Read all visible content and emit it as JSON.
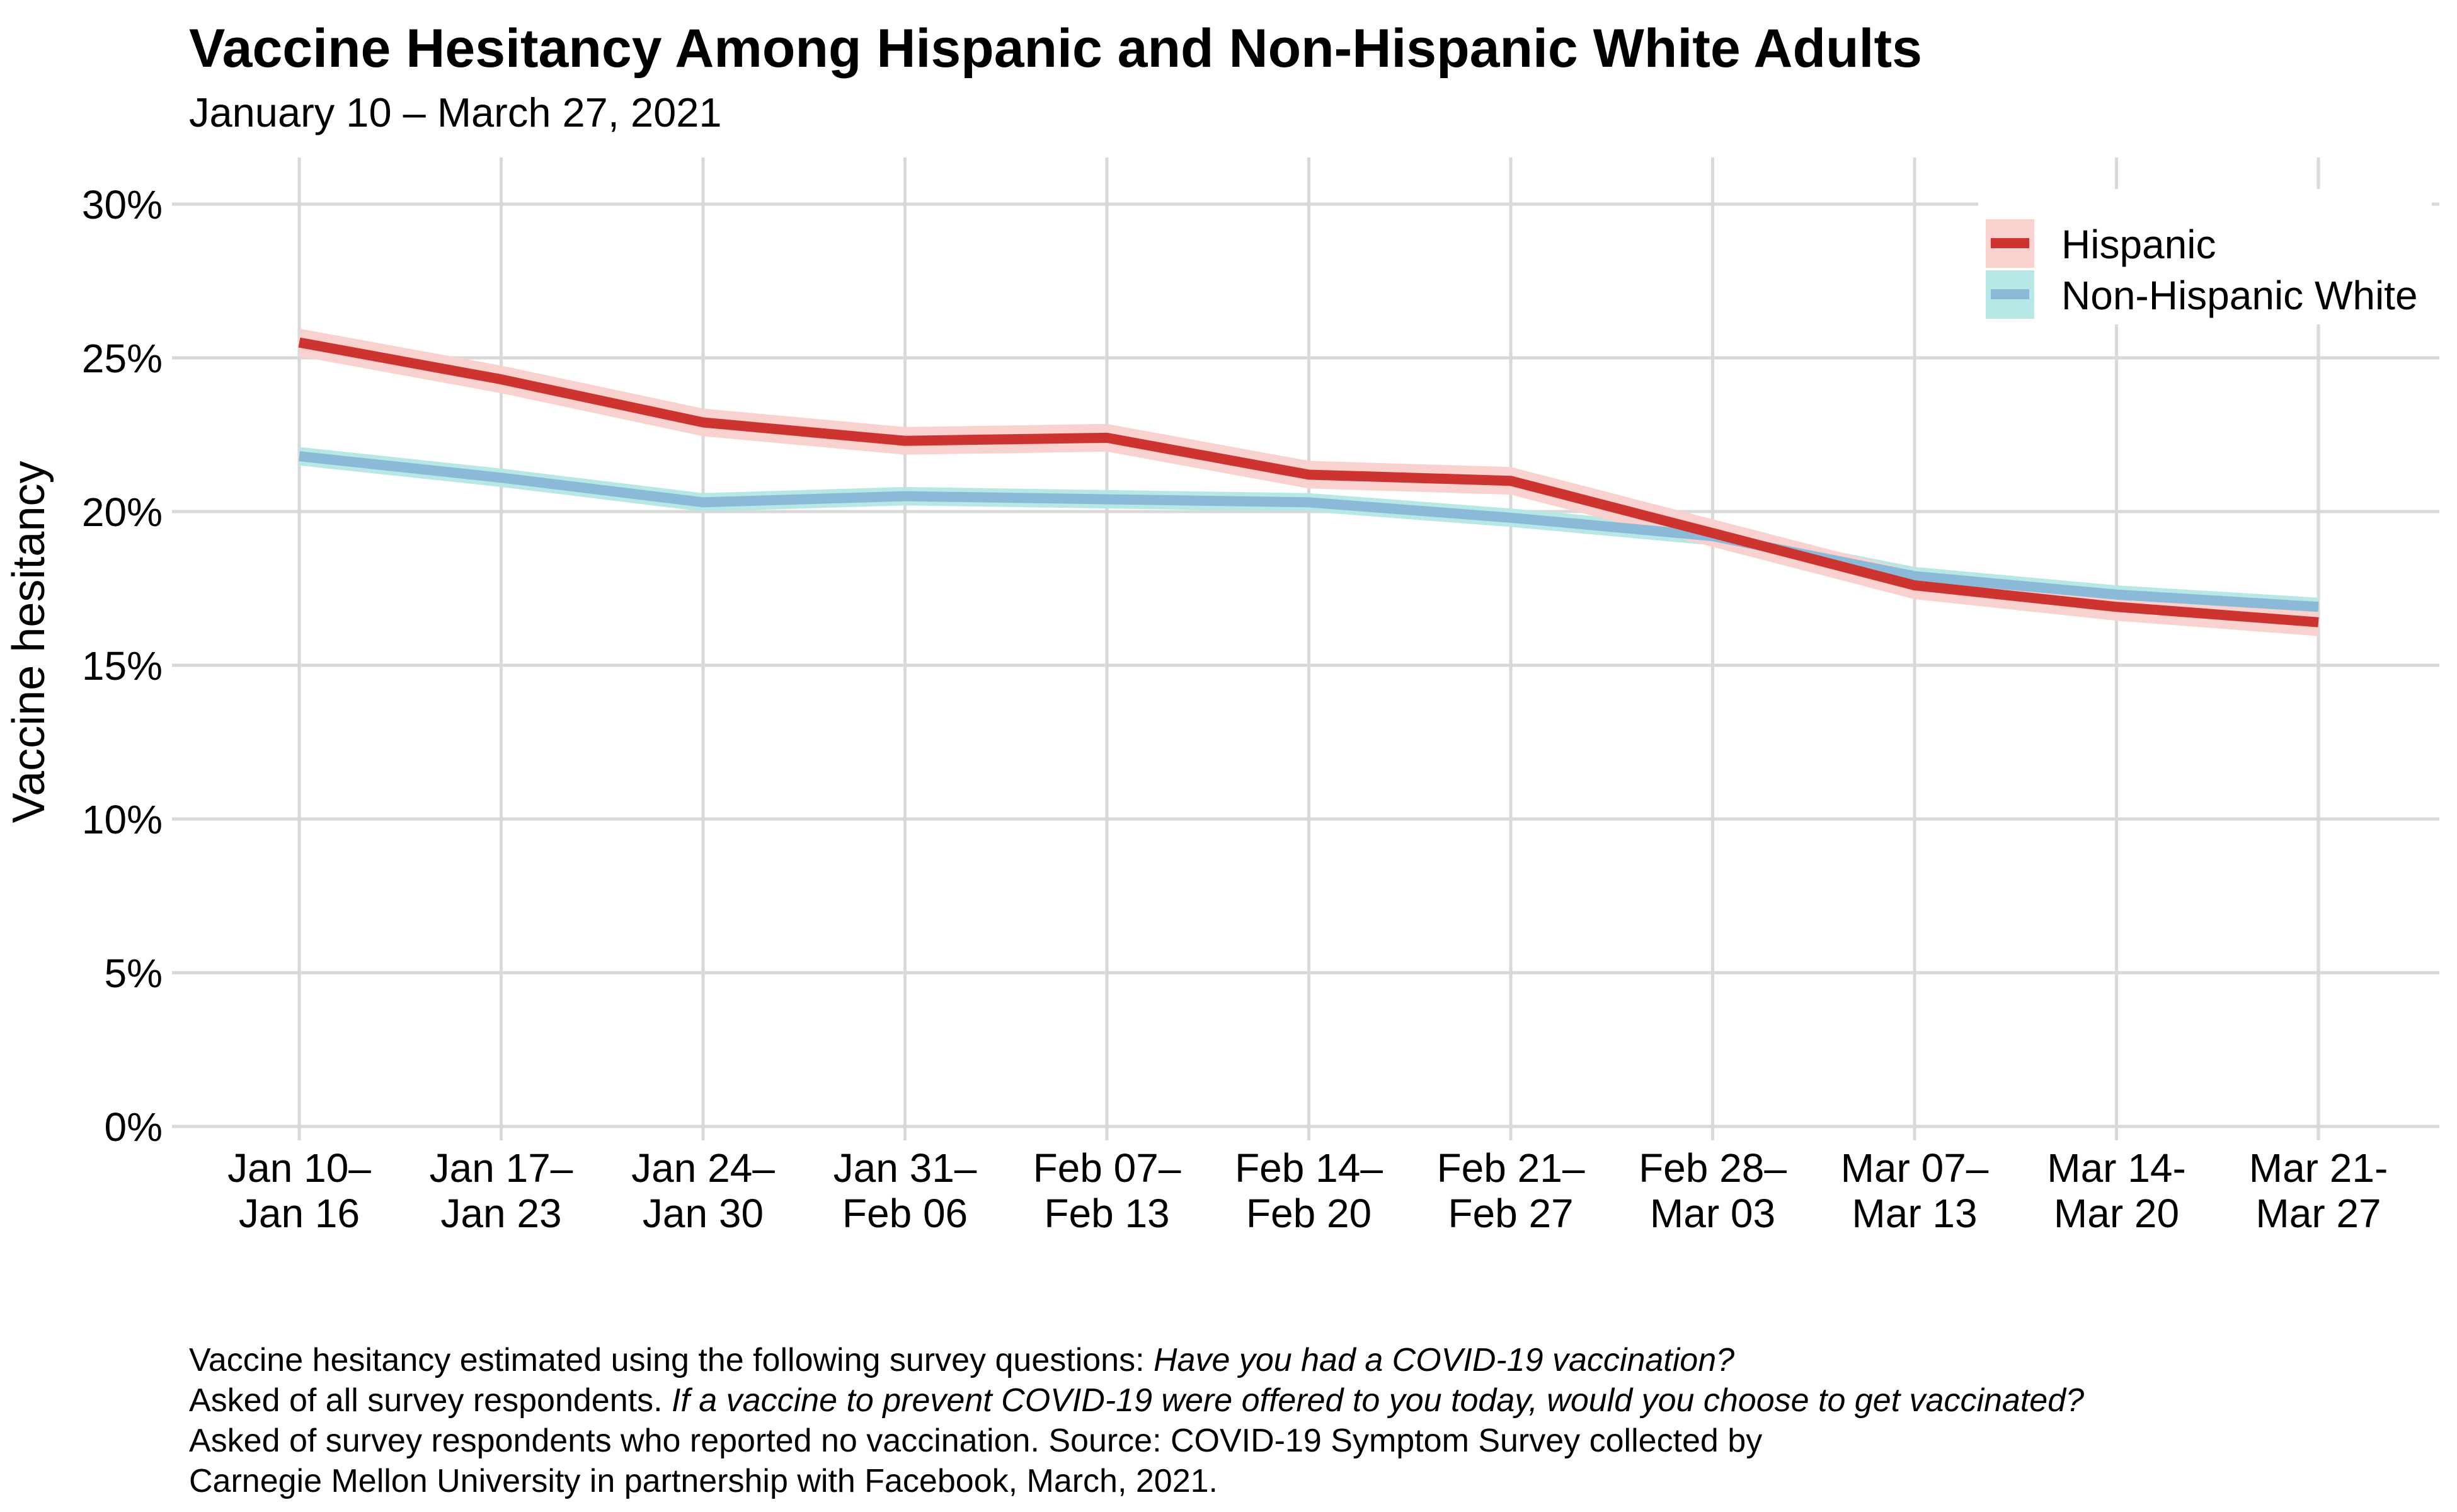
{
  "header": {
    "title": "Vaccine Hesitancy Among Hispanic and Non-Hispanic White Adults",
    "subtitle": "January 10 – March 27, 2021"
  },
  "y_axis": {
    "title": "Vaccine hesitancy",
    "tick_labels": [
      "0%",
      "5%",
      "10%",
      "15%",
      "20%",
      "25%",
      "30%"
    ]
  },
  "legend": {
    "items": [
      {
        "label": "Hispanic"
      },
      {
        "label": "Non-Hispanic White"
      }
    ]
  },
  "caption": {
    "lines": [
      [
        {
          "text": "Vaccine hesitancy estimated using the following survey questions: ",
          "italic": false
        },
        {
          "text": "Have you had a COVID-19 vaccination?",
          "italic": true
        }
      ],
      [
        {
          "text": "Asked of all survey respondents. ",
          "italic": false
        },
        {
          "text": "If a vaccine to prevent COVID-19 were offered to you today, would you choose to get vaccinated?",
          "italic": true
        }
      ],
      [
        {
          "text": "Asked of survey respondents who reported no vaccination. Source: COVID-19 Symptom Survey collected by",
          "italic": false
        }
      ],
      [
        {
          "text": "Carnegie Mellon University in partnership with Facebook, March, 2021.",
          "italic": false
        }
      ]
    ]
  },
  "colors": {
    "hispanic_line": "#CD3430",
    "hispanic_ribbon": "#F9D2CF",
    "nhw_line": "#8BBAD9",
    "nhw_ribbon": "#B7E8E6",
    "gridline": "#D9D9D9",
    "text": "#000000",
    "background": "#FFFFFF"
  },
  "chart_data": {
    "type": "line",
    "title": "Vaccine Hesitancy Among Hispanic and Non-Hispanic White Adults",
    "subtitle": "January 10 – March 27, 2021",
    "xlabel": "",
    "ylabel": "Vaccine hesitancy",
    "ylim": [
      0,
      30
    ],
    "y_tick_values": [
      0,
      5,
      10,
      15,
      20,
      25,
      30
    ],
    "grid": true,
    "legend_position": "top-right",
    "categories": [
      [
        "Jan 10–",
        "Jan 16"
      ],
      [
        "Jan 17–",
        "Jan 23"
      ],
      [
        "Jan 24–",
        "Jan 30"
      ],
      [
        "Jan 31–",
        "Feb 06"
      ],
      [
        "Feb 07–",
        "Feb 13"
      ],
      [
        "Feb 14–",
        "Feb 20"
      ],
      [
        "Feb 21–",
        "Feb 27"
      ],
      [
        "Feb 28–",
        "Mar 03"
      ],
      [
        "Mar 07–",
        "Mar 13"
      ],
      [
        "Mar 14-",
        "Mar 20"
      ],
      [
        "Mar 21-",
        "Mar 27"
      ]
    ],
    "series": [
      {
        "name": "Hispanic",
        "values": [
          25.5,
          24.3,
          22.9,
          22.3,
          22.4,
          21.2,
          21.0,
          19.3,
          17.6,
          16.9,
          16.4
        ],
        "ci_halfwidth": 0.45,
        "line_color": "#CD3430",
        "ribbon_color": "#F9D2CF"
      },
      {
        "name": "Non-Hispanic White",
        "values": [
          21.8,
          21.1,
          20.3,
          20.5,
          20.4,
          20.3,
          19.8,
          19.2,
          17.9,
          17.3,
          16.9
        ],
        "ci_halfwidth": 0.3,
        "line_color": "#8BBAD9",
        "ribbon_color": "#B7E8E6"
      }
    ]
  }
}
